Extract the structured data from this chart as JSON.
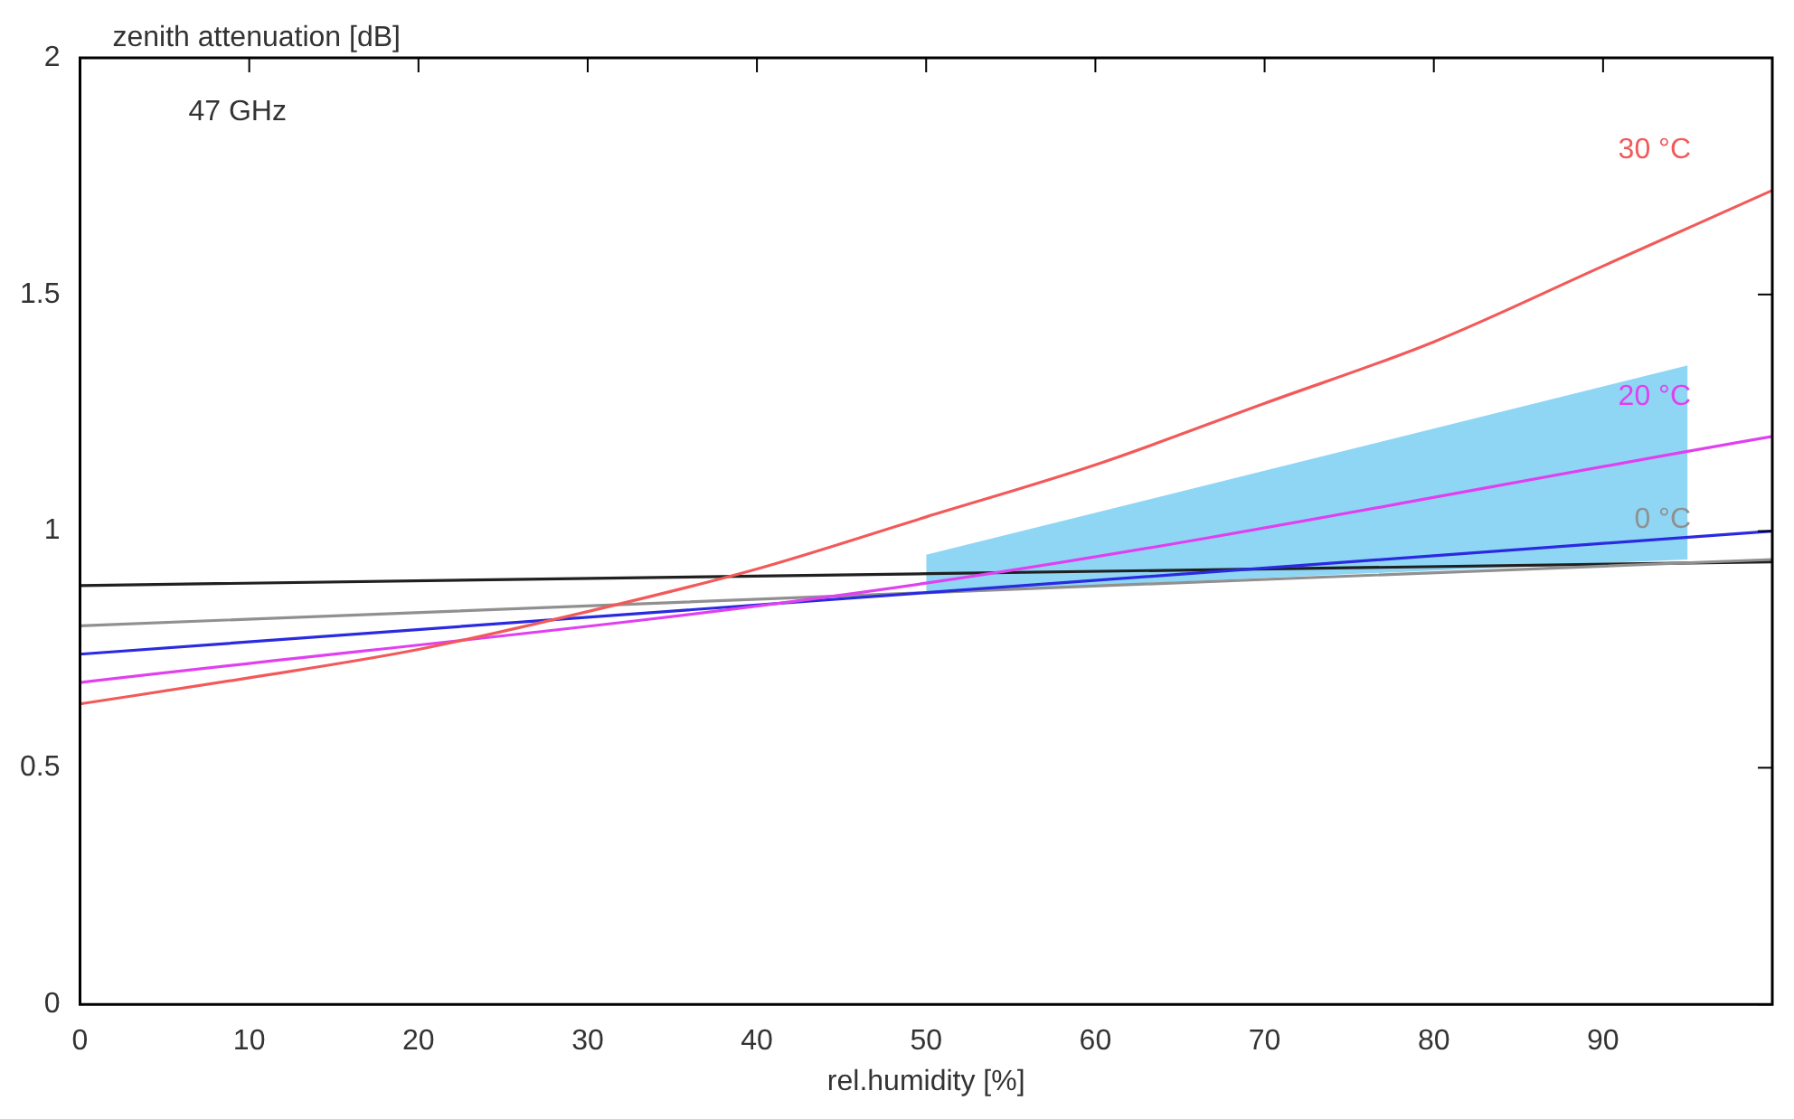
{
  "chart_data": {
    "type": "line",
    "ylabel": "zenith attenuation [dB]",
    "xlabel": "rel.humidity [%]",
    "annotations": [
      "47 GHz"
    ],
    "xlim": [
      0,
      100
    ],
    "xticks": [
      0,
      10,
      20,
      30,
      40,
      50,
      60,
      70,
      80,
      90,
      {
        "value": 100,
        "label": null
      }
    ],
    "ylim": [
      0,
      2
    ],
    "yticks": [
      0,
      0.5,
      1,
      1.5,
      2
    ],
    "grid": false,
    "legend": false,
    "marker": "none",
    "line_style": "solid",
    "series": [
      {
        "type": "area",
        "color": "#8fd6f5",
        "x": [
          50,
          95
        ],
        "values": [
          null,
          null
        ],
        "lower": [
          0.87,
          0.94
        ],
        "upper": [
          0.95,
          1.35
        ]
      },
      {
        "name": "30 °C",
        "color": "#f25a5a",
        "x": [
          0,
          10,
          20,
          30,
          40,
          50,
          60,
          70,
          80,
          90,
          100
        ],
        "values": [
          0.635,
          0.69,
          0.75,
          0.83,
          0.92,
          1.03,
          1.14,
          1.27,
          1.4,
          1.56,
          1.72
        ]
      },
      {
        "name": "20 °C",
        "color": "#e040f0",
        "x": [
          0,
          50,
          100
        ],
        "values": [
          0.68,
          0.89,
          1.2
        ]
      },
      {
        "color": "#2a2ae0",
        "x": [
          0,
          100
        ],
        "values": [
          0.74,
          1.0
        ]
      },
      {
        "name": "0 °C",
        "color": "#909090",
        "x": [
          0,
          100
        ],
        "values": [
          0.8,
          0.94
        ]
      },
      {
        "color": "#202020",
        "x": [
          0,
          100
        ],
        "values": [
          0.885,
          0.935
        ]
      }
    ]
  }
}
